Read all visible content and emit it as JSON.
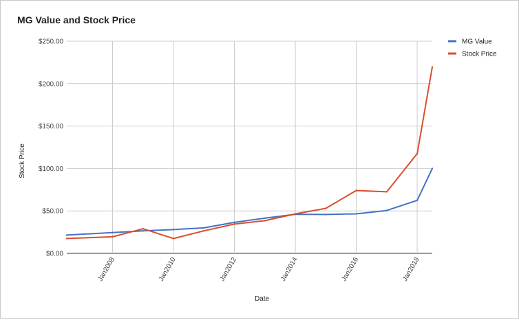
{
  "chart_data": {
    "type": "line",
    "title": "MG Value and Stock Price",
    "xlabel": "Date",
    "ylabel": "Stock Price",
    "ylim": [
      0,
      250
    ],
    "y_ticks": [
      "$0.00",
      "$50.00",
      "$100.00",
      "$150.00",
      "$200.00",
      "$250.00"
    ],
    "y_tick_values": [
      0,
      50,
      100,
      150,
      200,
      250
    ],
    "x_range": [
      "2006-07-01",
      "2018-07-01"
    ],
    "x_ticks": [
      "Jan2008",
      "Jan2010",
      "Jan2012",
      "Jan2014",
      "Jan2016",
      "Jan2018"
    ],
    "x_tick_dates": [
      "2008-01-01",
      "2010-01-01",
      "2012-01-01",
      "2014-01-01",
      "2016-01-01",
      "2018-01-01"
    ],
    "grid": true,
    "legend_position": "right",
    "series": [
      {
        "name": "MG Value",
        "color": "#4472c4",
        "points": [
          [
            "2006-07-01",
            21.5
          ],
          [
            "2008-01-01",
            24.5
          ],
          [
            "2009-01-01",
            26.5
          ],
          [
            "2010-01-01",
            28.0
          ],
          [
            "2011-01-01",
            30.0
          ],
          [
            "2012-01-01",
            36.5
          ],
          [
            "2013-01-01",
            41.5
          ],
          [
            "2014-01-01",
            46.0
          ],
          [
            "2015-01-01",
            45.8
          ],
          [
            "2016-01-01",
            46.5
          ],
          [
            "2017-01-01",
            50.5
          ],
          [
            "2018-01-01",
            62.5
          ],
          [
            "2018-07-01",
            100.0
          ]
        ]
      },
      {
        "name": "Stock Price",
        "color": "#db4c2c",
        "points": [
          [
            "2006-07-01",
            17.5
          ],
          [
            "2008-01-01",
            19.5
          ],
          [
            "2009-01-01",
            29.0
          ],
          [
            "2010-01-01",
            17.5
          ],
          [
            "2011-01-01",
            26.5
          ],
          [
            "2012-01-01",
            34.5
          ],
          [
            "2013-01-01",
            38.5
          ],
          [
            "2014-01-01",
            46.5
          ],
          [
            "2015-01-01",
            53.0
          ],
          [
            "2016-01-01",
            74.0
          ],
          [
            "2017-01-01",
            72.5
          ],
          [
            "2018-01-01",
            117.5
          ],
          [
            "2018-07-01",
            219.5
          ]
        ]
      }
    ]
  }
}
